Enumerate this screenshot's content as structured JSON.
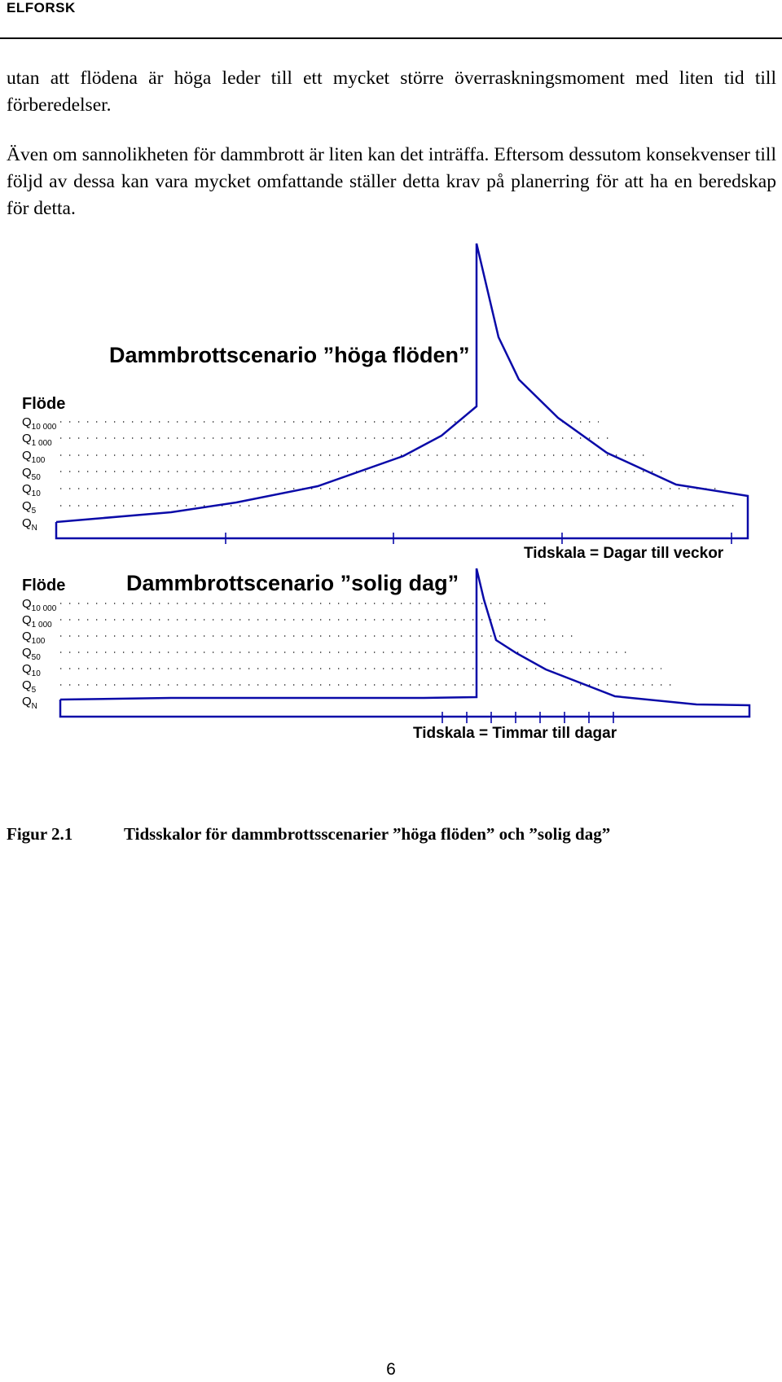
{
  "header": {
    "label": "ELFORSK"
  },
  "body": {
    "paragraphs": [
      "utan att flödena är höga leder till ett mycket större överraskningsmoment med liten tid till förberedelser.",
      "Även om sannolikheten för dammbrott är liten kan det inträffa. Eftersom dessutom konsekvenser till följd av dessa kan vara mycket omfattande ställer detta krav på planerring för att ha en beredskap för detta."
    ]
  },
  "figure": {
    "charts": [
      {
        "title": "Dammbrottscenario ”höga flöden”",
        "y_axis_label": "Flöde",
        "y_levels": [
          {
            "base": "Q",
            "sub": "10 000"
          },
          {
            "base": "Q",
            "sub": "1 000"
          },
          {
            "base": "Q",
            "sub": "100"
          },
          {
            "base": "Q",
            "sub": "50"
          },
          {
            "base": "Q",
            "sub": "10"
          },
          {
            "base": "Q",
            "sub": "5"
          },
          {
            "base": "Q",
            "sub": "N"
          }
        ],
        "time_scale_label": "Tidskala = Dagar till veckor",
        "line_color": "#0a0aa8"
      },
      {
        "title": "Dammbrottscenario ”solig dag”",
        "y_axis_label": "Flöde",
        "y_levels": [
          {
            "base": "Q",
            "sub": "10 000"
          },
          {
            "base": "Q",
            "sub": "1 000"
          },
          {
            "base": "Q",
            "sub": "100"
          },
          {
            "base": "Q",
            "sub": "50"
          },
          {
            "base": "Q",
            "sub": "10"
          },
          {
            "base": "Q",
            "sub": "5"
          },
          {
            "base": "Q",
            "sub": "N"
          }
        ],
        "time_scale_label": "Tidskala = Timmar till dagar",
        "line_color": "#0a0aa8"
      }
    ]
  },
  "caption": {
    "number": "Figur 2.1",
    "text": "Tidsskalor för dammbrottsscenarier ”höga flöden” och ”solig dag”"
  },
  "page_number": "6"
}
